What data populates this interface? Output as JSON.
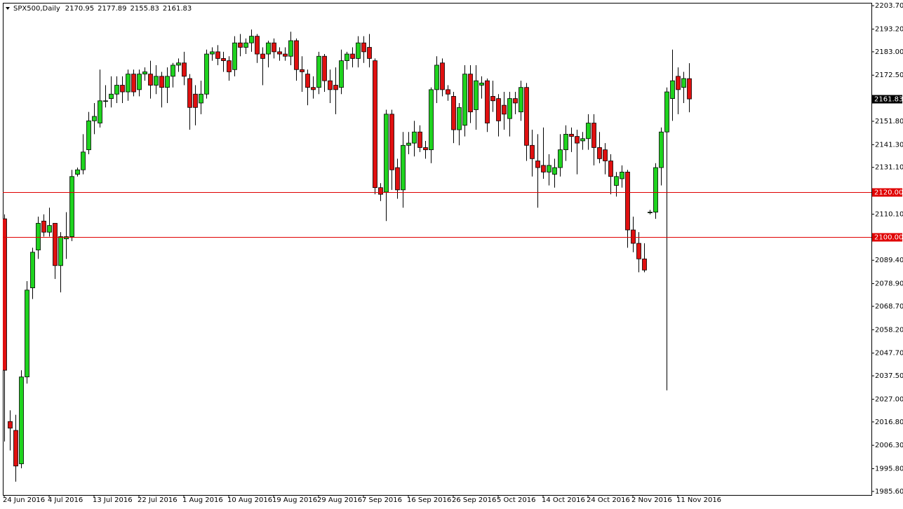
{
  "chart_data": {
    "type": "candlestick",
    "title": "SPX500,Daily",
    "categories": [
      "24 Jun 2016",
      null,
      null,
      null,
      null,
      null,
      null,
      null,
      "4 Jul 2016",
      null,
      null,
      null,
      null,
      null,
      null,
      null,
      "13 Jul 2016",
      null,
      null,
      null,
      null,
      null,
      null,
      null,
      "22 Jul 2016",
      null,
      null,
      null,
      null,
      null,
      null,
      null,
      "1 Aug 2016",
      null,
      null,
      null,
      null,
      null,
      null,
      null,
      "10 Aug 2016",
      null,
      null,
      null,
      null,
      null,
      null,
      null,
      "19 Aug 2016",
      null,
      null,
      null,
      null,
      null,
      null,
      null,
      "29 Aug 2016",
      null,
      null,
      null,
      null,
      null,
      null,
      null,
      "7 Sep 2016",
      null,
      null,
      null,
      null,
      null,
      null,
      null,
      "16 Sep 2016",
      null,
      null,
      null,
      null,
      null,
      null,
      null,
      "26 Sep 2016",
      null,
      null,
      null,
      null,
      null,
      null,
      null,
      "5 Oct 2016",
      null,
      null,
      null,
      null,
      null,
      null,
      null,
      "14 Oct 2016",
      null,
      null,
      null,
      null,
      null,
      null,
      null,
      "24 Oct 2016",
      null,
      null,
      null,
      null,
      null,
      null,
      null,
      "2 Nov 2016",
      null,
      null,
      null,
      null,
      null,
      null,
      null,
      "11 Nov 2016",
      null,
      null
    ],
    "open": [
      2108,
      2017,
      2013,
      1998,
      2037,
      2077,
      2094,
      2107,
      2102,
      2106,
      2087,
      2099,
      2100,
      2128,
      2130,
      2139,
      2152,
      2151,
      2161,
      2162,
      2164,
      2168,
      2165,
      2173,
      2166,
      2173,
      2173,
      2168,
      2172,
      2167,
      2172,
      2177,
      2178,
      2171,
      2164,
      2160,
      2164,
      2182,
      2183,
      2180,
      2179,
      2175,
      2187,
      2185,
      2187,
      2190,
      2182,
      2182,
      2187,
      2183,
      2182,
      2181,
      2188,
      2175,
      2173,
      2167,
      2167,
      2181,
      2170,
      2168,
      2167,
      2179,
      2182,
      2180,
      2187,
      2185,
      2179,
      2122,
      2120,
      2155,
      2131,
      2121,
      2141,
      2142,
      2147,
      2140,
      2139,
      2166,
      2178,
      2166,
      2163,
      2148,
      2150,
      2173,
      2157,
      2168,
      2170,
      2163,
      2162,
      2159,
      2153,
      2162,
      2156,
      2167,
      2141,
      2134,
      2132,
      2129,
      2128,
      2131,
      2139,
      2146,
      2145,
      2143,
      2144,
      2151,
      2140,
      2139,
      2134,
      2123,
      2126,
      2129,
      2103,
      2097,
      2090,
      2111,
      2111,
      2131,
      2147,
      2162,
      2172,
      2167,
      2170.95
    ],
    "high": [
      2110,
      2022,
      2020,
      2040,
      2080,
      2095,
      2109,
      2110,
      2113,
      2106,
      2102,
      2111,
      2130,
      2131,
      2146,
      2156,
      2160,
      2175,
      2168,
      2172,
      2172,
      2172,
      2175,
      2175,
      2175,
      2176,
      2179,
      2177,
      2174,
      2176,
      2178,
      2180,
      2183,
      2173,
      2168,
      2170,
      2184,
      2185,
      2186,
      2183,
      2181,
      2190,
      2191,
      2189,
      2193,
      2191,
      2185,
      2188,
      2189,
      2185,
      2185,
      2192,
      2189,
      2181,
      2175,
      2172,
      2183,
      2182,
      2175,
      2176,
      2184,
      2183,
      2185,
      2190,
      2190,
      2191,
      2180,
      2124,
      2157,
      2157,
      2135,
      2147,
      2147,
      2152,
      2150,
      2143,
      2167,
      2181,
      2180,
      2168,
      2165,
      2160,
      2177,
      2177,
      2177,
      2172,
      2171,
      2170,
      2164,
      2165,
      2165,
      2165,
      2170,
      2169,
      2148,
      2146,
      2149,
      2137,
      2135,
      2146,
      2150,
      2149,
      2148,
      2147,
      2155,
      2155,
      2147,
      2142,
      2137,
      2129,
      2132,
      2130,
      2109,
      2102,
      2097,
      2112,
      2133,
      2149,
      2167,
      2184,
      2176,
      2174,
      2177.89
    ],
    "low": [
      2008,
      2004,
      1990,
      1996,
      2034,
      2072,
      2090,
      2100,
      2100,
      2081,
      2075,
      2090,
      2098,
      2127,
      2128,
      2137,
      2146,
      2149,
      2158,
      2158,
      2160,
      2160,
      2161,
      2163,
      2163,
      2170,
      2162,
      2164,
      2158,
      2160,
      2167,
      2174,
      2168,
      2148,
      2150,
      2155,
      2162,
      2179,
      2177,
      2174,
      2170,
      2172,
      2181,
      2182,
      2183,
      2178,
      2168,
      2176,
      2180,
      2179,
      2179,
      2177,
      2170,
      2165,
      2159,
      2162,
      2164,
      2165,
      2160,
      2155,
      2164,
      2175,
      2176,
      2176,
      2178,
      2176,
      2119,
      2116,
      2107,
      2121,
      2117,
      2113,
      2137,
      2136,
      2138,
      2135,
      2133,
      2160,
      2163,
      2161,
      2142,
      2141,
      2145,
      2151,
      2148,
      2162,
      2147,
      2156,
      2145,
      2148,
      2145,
      2155,
      2152,
      2134,
      2127,
      2113,
      2126,
      2123,
      2122,
      2127,
      2134,
      2138,
      2128,
      2139,
      2139,
      2132,
      2133,
      2128,
      2119,
      2118,
      2122,
      2095,
      2093,
      2084,
      2084,
      2110,
      2108,
      2123,
      2031,
      2152,
      2155,
      2160,
      2155.83
    ],
    "close": [
      2040,
      2014,
      1997,
      2037,
      2076,
      2093,
      2106,
      2102,
      2105,
      2087,
      2100,
      2100,
      2127,
      2130,
      2138,
      2152,
      2154,
      2161,
      2161,
      2164,
      2168,
      2165,
      2173,
      2165,
      2173,
      2174,
      2168,
      2172,
      2167,
      2172,
      2177,
      2178,
      2172,
      2158,
      2158,
      2164,
      2182,
      2183,
      2180,
      2179,
      2174,
      2187,
      2185,
      2187,
      2190,
      2182,
      2180,
      2187,
      2183,
      2182,
      2181,
      2188,
      2175,
      2174,
      2167,
      2166,
      2181,
      2170,
      2166,
      2166,
      2179,
      2182,
      2180,
      2187,
      2183,
      2180,
      2122,
      2119,
      2155,
      2130,
      2121,
      2141,
      2142,
      2147,
      2140,
      2139,
      2166,
      2177,
      2166,
      2164,
      2148,
      2158,
      2173,
      2156,
      2170,
      2169,
      2151,
      2161,
      2152,
      2155,
      2162,
      2160,
      2167,
      2141,
      2135,
      2131,
      2129,
      2132,
      2131,
      2139,
      2146,
      2145,
      2142,
      2144,
      2151,
      2140,
      2135,
      2134,
      2127,
      2127,
      2129,
      2103,
      2097,
      2090,
      2085,
      2111,
      2131,
      2147,
      2165,
      2170,
      2166,
      2171,
      2161.83
    ],
    "up_color": "#1fd31f",
    "down_color": "#e01010",
    "ylim": [
      1984.0,
      2205.0
    ],
    "yticks": [
      {
        "value": 2203.7,
        "label": "2203.70"
      },
      {
        "value": 2193.2,
        "label": "2193.20"
      },
      {
        "value": 2183.0,
        "label": "2183.00"
      },
      {
        "value": 2172.5,
        "label": "2172.50"
      },
      {
        "value": 2151.8,
        "label": "2151.80"
      },
      {
        "value": 2141.3,
        "label": "2141.30"
      },
      {
        "value": 2131.1,
        "label": "2131.10"
      },
      {
        "value": 2110.1,
        "label": "2110.10"
      },
      {
        "value": 2089.4,
        "label": "2089.40"
      },
      {
        "value": 2078.9,
        "label": "2078.90"
      },
      {
        "value": 2068.7,
        "label": "2068.70"
      },
      {
        "value": 2058.2,
        "label": "2058.20"
      },
      {
        "value": 2047.7,
        "label": "2047.70"
      },
      {
        "value": 2037.5,
        "label": "2037.50"
      },
      {
        "value": 2027.0,
        "label": "2027.00"
      },
      {
        "value": 2016.8,
        "label": "2016.80"
      },
      {
        "value": 2006.3,
        "label": "2006.30"
      },
      {
        "value": 1995.8,
        "label": "1995.80"
      },
      {
        "value": 1985.6,
        "label": "1985.60"
      }
    ],
    "hlines": [
      {
        "value": 2120,
        "label": "2120.00"
      },
      {
        "value": 2100,
        "label": "2100.00"
      }
    ],
    "hline_color": "#e00000"
  }
}
